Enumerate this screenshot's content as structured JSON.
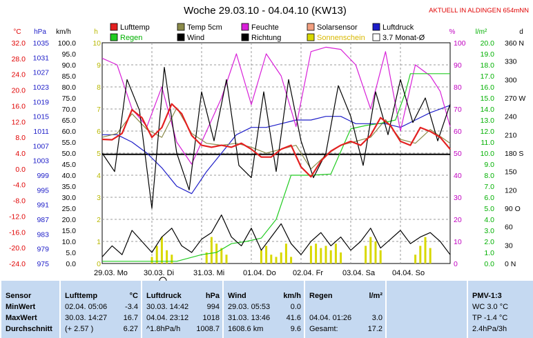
{
  "header": {
    "title": "Woche 29.03.10 - 04.04.10 (KW13)",
    "location_note": "AKTUELL IN ALDINGEN 654mNN"
  },
  "legend": [
    {
      "label": "Lufttemp",
      "color": "#e32020"
    },
    {
      "label": "Temp 5cm",
      "color": "#8b8b4a"
    },
    {
      "label": "Feuchte",
      "color": "#d820d8"
    },
    {
      "label": "Solarsensor",
      "color": "#f2a080"
    },
    {
      "label": "Luftdruck",
      "color": "#1d1dc8"
    },
    {
      "label": "Regen",
      "color": "#22cc22"
    },
    {
      "label": "Wind",
      "color": "#000000"
    },
    {
      "label": "Richtung",
      "color": "#000000"
    },
    {
      "label": "Sonnenschein",
      "color": "#d8d800"
    },
    {
      "label": "3.7 Monat-Ø",
      "color": "#ffffff"
    }
  ],
  "axes": {
    "temp": {
      "unit": "°C",
      "ticks": [
        "32.0",
        "28.0",
        "24.0",
        "20.0",
        "16.0",
        "12.0",
        "8.0",
        "4.0",
        "0.0",
        "-4.0",
        "-8.0",
        "-12.0",
        "-16.0",
        "-20.0",
        "-24.0"
      ]
    },
    "pressure": {
      "unit": "hPa",
      "ticks": [
        "1035",
        "1031",
        "1027",
        "1023",
        "1019",
        "1015",
        "1011",
        "1007",
        "1003",
        "999",
        "995",
        "991",
        "987",
        "983",
        "979",
        "975"
      ]
    },
    "wind_speed": {
      "unit": "km/h",
      "ticks": [
        "100.0",
        "95.0",
        "90.0",
        "85.0",
        "80.0",
        "75.0",
        "70.0",
        "65.0",
        "60.0",
        "55.0",
        "50.0",
        "45.0",
        "40.0",
        "35.0",
        "30.0",
        "25.0",
        "20.0",
        "15.0",
        "10.0",
        "5.0",
        "0.0"
      ]
    },
    "sun_hours": {
      "unit": "h",
      "ticks": [
        "10",
        "9",
        "8",
        "7",
        "6",
        "5",
        "4",
        "3",
        "2",
        "1",
        "0"
      ]
    },
    "humidity": {
      "unit": "%",
      "ticks": [
        "100",
        "90",
        "80",
        "70",
        "60",
        "50",
        "40",
        "30",
        "20",
        "10",
        "0"
      ]
    },
    "rain": {
      "unit": "l/m²",
      "ticks": [
        "20.0",
        "19.0",
        "18.0",
        "17.0",
        "16.0",
        "15.0",
        "14.0",
        "13.0",
        "12.0",
        "11.0",
        "10.0",
        "9.0",
        "8.0",
        "7.0",
        "6.0",
        "5.0",
        "4.0",
        "3.0",
        "2.0",
        "1.0",
        "0.0"
      ]
    },
    "direction": {
      "unit": "d",
      "ticks": [
        "360 N",
        "330",
        "300",
        "270 W",
        "240",
        "210",
        "180 S",
        "150",
        "120",
        "90 O",
        "60",
        "30",
        "0 N"
      ]
    },
    "x_days": [
      "29.03. Mo",
      "30.03. Di",
      "31.03. Mi",
      "01.04. Do",
      "02.04. Fr",
      "03.04. Sa",
      "04.04. So"
    ]
  },
  "stats": {
    "sensor": {
      "title": "Sensor",
      "labels": [
        "MinWert",
        "MaxWert",
        "Durchschnitt"
      ]
    },
    "lufttemp": {
      "title": "Lufttemp",
      "unit": "°C",
      "rows": [
        [
          "02.04.  05:06",
          "-3.4"
        ],
        [
          "30.03.  14:27",
          "16.7"
        ],
        [
          "(+ 2.57 )",
          "6.27"
        ]
      ]
    },
    "luftdruck": {
      "title": "Luftdruck",
      "unit": "hPa",
      "rows": [
        [
          "30.03.  14:42",
          "994"
        ],
        [
          "04.04.  23:12",
          "1018"
        ],
        [
          "^1.8hPa/h",
          "1008.7"
        ]
      ]
    },
    "wind": {
      "title": "Wind",
      "unit": "km/h",
      "rows": [
        [
          "29.03.  05:53",
          "0.0"
        ],
        [
          "31.03.  13:46",
          "41.6"
        ],
        [
          "1608.6 km",
          "9.6"
        ]
      ]
    },
    "regen": {
      "title": "Regen",
      "unit": "l/m²",
      "rows": [
        [
          "",
          ""
        ],
        [
          "04.04.  01:26",
          "3.0"
        ],
        [
          "Gesamt:",
          "17.2"
        ]
      ]
    },
    "pmv": {
      "title": "PMV-1:3",
      "rows": [
        "WC 3.0 °C",
        "TP -1.4 °C",
        "2.4hPa/3h"
      ]
    }
  },
  "chart_data": {
    "type": "line",
    "title": "Woche 29.03.10 - 04.04.10 (KW13)",
    "x_unit": "day",
    "x_range": [
      0,
      7
    ],
    "categories": [
      "29.03. Mo",
      "30.03. Di",
      "31.03. Mi",
      "01.04. Do",
      "02.04. Fr",
      "03.04. Sa",
      "04.04. So"
    ],
    "grid": true,
    "series": [
      {
        "name": "Lufttemp",
        "axis": "°C",
        "color": "#e32020",
        "x": [
          0,
          0.2,
          0.4,
          0.6,
          0.8,
          1.0,
          1.2,
          1.4,
          1.6,
          1.8,
          2.0,
          2.2,
          2.4,
          2.6,
          2.8,
          3.0,
          3.2,
          3.4,
          3.6,
          3.8,
          4.0,
          4.2,
          4.4,
          4.6,
          4.8,
          5.0,
          5.2,
          5.4,
          5.6,
          5.8,
          6.0,
          6.2,
          6.4,
          6.6,
          6.8,
          7.0
        ],
        "y": [
          7.5,
          7.4,
          9.0,
          15.0,
          13.0,
          8.0,
          10.5,
          16.5,
          14.0,
          8.5,
          6.0,
          5.5,
          6.0,
          5.5,
          6.5,
          5.0,
          3.0,
          3.0,
          5.0,
          6.0,
          0.5,
          -2.0,
          2.0,
          4.5,
          6.0,
          7.0,
          6.0,
          8.5,
          13.0,
          11.0,
          7.0,
          6.0,
          10.5,
          9.5,
          8.0,
          5.0
        ]
      },
      {
        "name": "Temp 5cm",
        "axis": "°C",
        "color": "#8b8b4a",
        "x": [
          0,
          0.3,
          0.6,
          0.9,
          1.2,
          1.5,
          1.8,
          2.1,
          2.4,
          2.7,
          3.0,
          3.3,
          3.6,
          3.9,
          4.2,
          4.5,
          4.8,
          5.1,
          5.4,
          5.7,
          6.0,
          6.3,
          6.6,
          7.0
        ],
        "y": [
          8.0,
          9.0,
          14.0,
          10.0,
          8.0,
          15.5,
          9.0,
          6.5,
          6.0,
          6.5,
          5.5,
          4.0,
          5.0,
          6.0,
          0.0,
          3.5,
          6.0,
          7.0,
          8.0,
          12.5,
          7.5,
          6.5,
          10.0,
          6.5
        ]
      },
      {
        "name": "Feuchte",
        "axis": "%",
        "color": "#d820d8",
        "x": [
          0,
          0.3,
          0.6,
          0.9,
          1.2,
          1.5,
          1.8,
          2.1,
          2.4,
          2.7,
          3.0,
          3.3,
          3.6,
          3.9,
          4.2,
          4.5,
          4.8,
          5.1,
          5.4,
          5.7,
          6.0,
          6.3,
          6.6,
          6.8,
          7.0
        ],
        "y": [
          93,
          90,
          70,
          62,
          80,
          55,
          45,
          60,
          75,
          95,
          72,
          95,
          85,
          62,
          96,
          98,
          97,
          90,
          70,
          96,
          60,
          90,
          85,
          78,
          62
        ]
      },
      {
        "name": "Luftdruck",
        "axis": "hPa",
        "color": "#1d1dc8",
        "x": [
          0,
          0.3,
          0.6,
          0.9,
          1.2,
          1.5,
          1.8,
          2.1,
          2.4,
          2.7,
          3.0,
          3.3,
          3.6,
          3.9,
          4.2,
          4.5,
          4.8,
          5.1,
          5.4,
          5.7,
          6.0,
          6.3,
          6.6,
          7.0
        ],
        "y": [
          1010,
          1010,
          1008,
          1005,
          1001,
          996,
          994,
          1000,
          1005,
          1010,
          1012,
          1012,
          1013,
          1014,
          1014,
          1015,
          1015,
          1013,
          1013,
          1013,
          1012,
          1014,
          1016,
          1018
        ]
      },
      {
        "name": "Regen",
        "axis": "l/m²",
        "color": "#22cc22",
        "x": [
          0,
          1.5,
          2.0,
          2.3,
          2.6,
          2.9,
          3.2,
          3.5,
          3.8,
          4.2,
          4.6,
          5.0,
          5.3,
          5.6,
          5.9,
          6.1,
          6.2,
          6.5,
          6.8,
          7.0
        ],
        "y": [
          0.2,
          0.2,
          0.8,
          1.0,
          1.8,
          2.0,
          2.3,
          4.0,
          8.0,
          8.0,
          8.1,
          12.2,
          12.5,
          12.7,
          13.0,
          15.5,
          17.2,
          17.2,
          17.2,
          17.2
        ]
      },
      {
        "name": "Wind",
        "axis": "km/h",
        "color": "#000000",
        "x": [
          0,
          0.2,
          0.4,
          0.6,
          0.8,
          1.0,
          1.2,
          1.4,
          1.6,
          1.8,
          2.0,
          2.2,
          2.4,
          2.6,
          2.8,
          3.0,
          3.2,
          3.4,
          3.6,
          3.8,
          4.0,
          4.2,
          4.4,
          4.6,
          4.8,
          5.0,
          5.2,
          5.4,
          5.6,
          5.8,
          6.0,
          6.2,
          6.4,
          6.6,
          6.8,
          7.0
        ],
        "y": [
          3,
          8,
          4,
          15,
          10,
          5,
          12,
          16,
          8,
          5,
          11,
          14,
          22,
          12,
          8,
          16,
          6,
          12,
          18,
          9,
          4,
          10,
          14,
          8,
          12,
          6,
          10,
          16,
          7,
          11,
          15,
          9,
          12,
          14,
          10,
          4
        ]
      },
      {
        "name": "Richtung",
        "axis": "d",
        "color": "#000000",
        "x": [
          0,
          0.25,
          0.5,
          0.75,
          1.0,
          1.25,
          1.5,
          1.75,
          2.0,
          2.25,
          2.5,
          2.75,
          3.0,
          3.25,
          3.5,
          3.75,
          4.0,
          4.25,
          4.5,
          4.75,
          5.0,
          5.25,
          5.5,
          5.75,
          6.0,
          6.25,
          6.5,
          6.75,
          7.0
        ],
        "y": [
          180,
          150,
          300,
          250,
          90,
          320,
          180,
          120,
          280,
          200,
          300,
          160,
          140,
          280,
          150,
          300,
          200,
          140,
          180,
          290,
          240,
          160,
          280,
          210,
          300,
          230,
          270,
          200,
          260
        ]
      },
      {
        "name": "Sonnenschein",
        "axis": "h",
        "color": "#d8d800",
        "x": [
          1.0,
          1.1,
          1.2,
          1.3,
          1.4,
          2.1,
          2.2,
          2.3,
          2.4,
          2.5,
          3.2,
          3.3,
          3.4,
          3.5,
          3.6,
          3.7,
          3.8,
          4.2,
          4.3,
          4.4,
          4.5,
          4.6,
          4.7,
          4.8,
          5.3,
          5.4,
          5.5,
          5.6,
          6.3,
          6.4,
          6.5,
          6.6
        ],
        "y": [
          0.3,
          0.8,
          1.2,
          0.6,
          0.4,
          0.5,
          1.2,
          0.9,
          0.7,
          0.4,
          0.6,
          0.8,
          0.4,
          0.3,
          0.5,
          0.9,
          0.3,
          0.8,
          0.9,
          0.7,
          0.8,
          0.6,
          0.9,
          0.5,
          0.8,
          1.2,
          1.0,
          0.6,
          0.4,
          0.8,
          1.2,
          0.7
        ]
      }
    ],
    "reference_lines": [
      {
        "label": "3.7 Monat-Ø",
        "axis": "°C",
        "value": 3.7
      }
    ]
  }
}
